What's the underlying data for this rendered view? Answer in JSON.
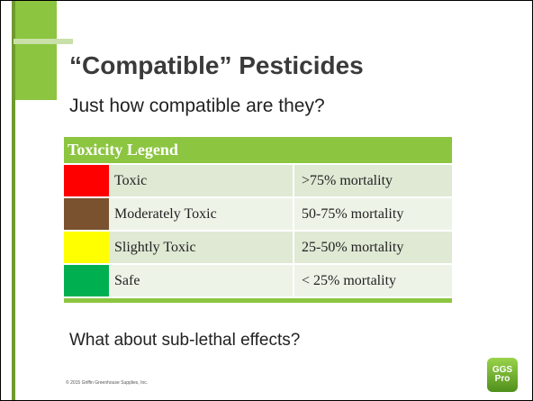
{
  "title": "“Compatible” Pesticides",
  "subtitle": "Just how compatible are they?",
  "table": {
    "header": "Toxicity Legend",
    "rows": [
      {
        "color": "#ff0000",
        "label": "Toxic",
        "mortality": ">75% mortality"
      },
      {
        "color": "#7a5230",
        "label": "Moderately Toxic",
        "mortality": "50-75% mortality"
      },
      {
        "color": "#ffff00",
        "label": "Slightly Toxic",
        "mortality": "25-50% mortality"
      },
      {
        "color": "#00b050",
        "label": "Safe",
        "mortality": "< 25% mortality"
      }
    ]
  },
  "question": "What about sub-lethal effects?",
  "copyright": "© 2015 Griffin Greenhouse Supplies, Inc.",
  "logo": [
    "GGS",
    "Pro"
  ]
}
